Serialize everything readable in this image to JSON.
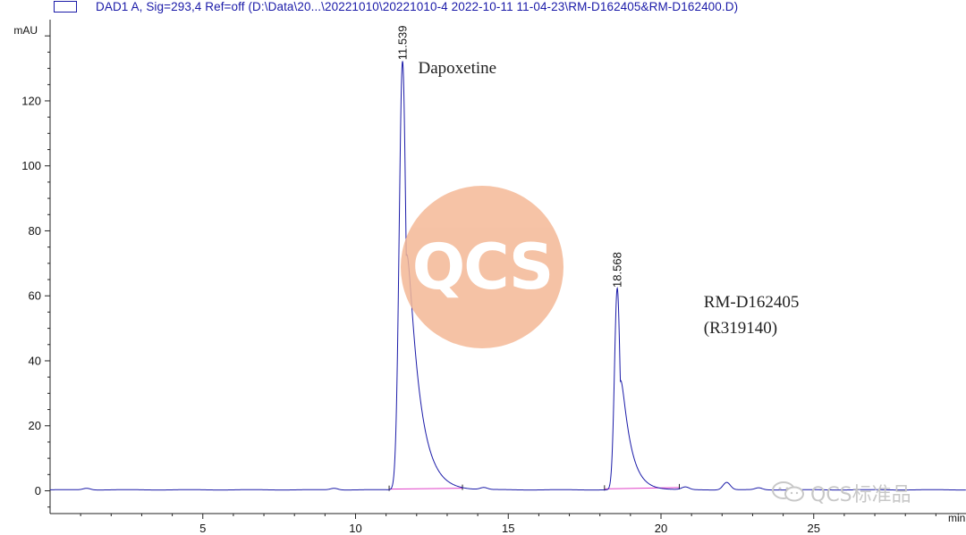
{
  "chart_data": {
    "type": "line",
    "legend_label": "DAD1 A, Sig=293,4 Ref=off (D:\\Data\\20...\\20221010\\20221010-4 2022-10-11 11-04-23\\RM-D162405&RM-D162400.D)",
    "xlabel": "min",
    "ylabel": "mAU",
    "xlim": [
      0,
      30
    ],
    "ylim": [
      -7,
      142
    ],
    "x_ticks": [
      5,
      10,
      15,
      20,
      25
    ],
    "y_ticks": [
      0,
      20,
      40,
      60,
      80,
      100,
      120
    ],
    "grid": false,
    "series": [
      {
        "color": "#1a1aa8",
        "baseline": 0.3,
        "peaks": [
          {
            "retention_time": 11.539,
            "label": "11.539",
            "height": 132,
            "sigma": 0.11,
            "tail": 0.38,
            "start": 11.1,
            "end": 13.5
          },
          {
            "retention_time": 18.568,
            "label": "18.568",
            "height": 62,
            "sigma": 0.09,
            "tail": 0.3,
            "start": 18.15,
            "end": 20.6
          }
        ],
        "minor_bumps": [
          {
            "x": 1.2,
            "height": 0.5
          },
          {
            "x": 9.3,
            "height": 0.5
          },
          {
            "x": 14.2,
            "height": 0.6
          },
          {
            "x": 20.8,
            "height": 0.8
          },
          {
            "x": 22.15,
            "height": 2.3
          },
          {
            "x": 23.2,
            "height": 0.6
          }
        ]
      }
    ],
    "integration_baselines": [
      {
        "from": 11.1,
        "to": 13.5,
        "y_from": 0.5,
        "y_to": 0.8
      },
      {
        "from": 18.15,
        "to": 20.6,
        "y_from": 0.6,
        "y_to": 1.0
      }
    ],
    "integration_color": "#e040c8",
    "annotations": [
      {
        "text": "Dapoxetine",
        "x": 12.05,
        "y": 128.5
      },
      {
        "text": "RM-D162405",
        "x": 21.4,
        "y": 56.5
      },
      {
        "text": "(R319140)",
        "x": 21.4,
        "y": 48.5
      }
    ]
  },
  "watermark": {
    "text": "QCS",
    "color": "#f4b896"
  },
  "brand": {
    "text": "QCS标准品",
    "icon": "wechat-icon"
  }
}
